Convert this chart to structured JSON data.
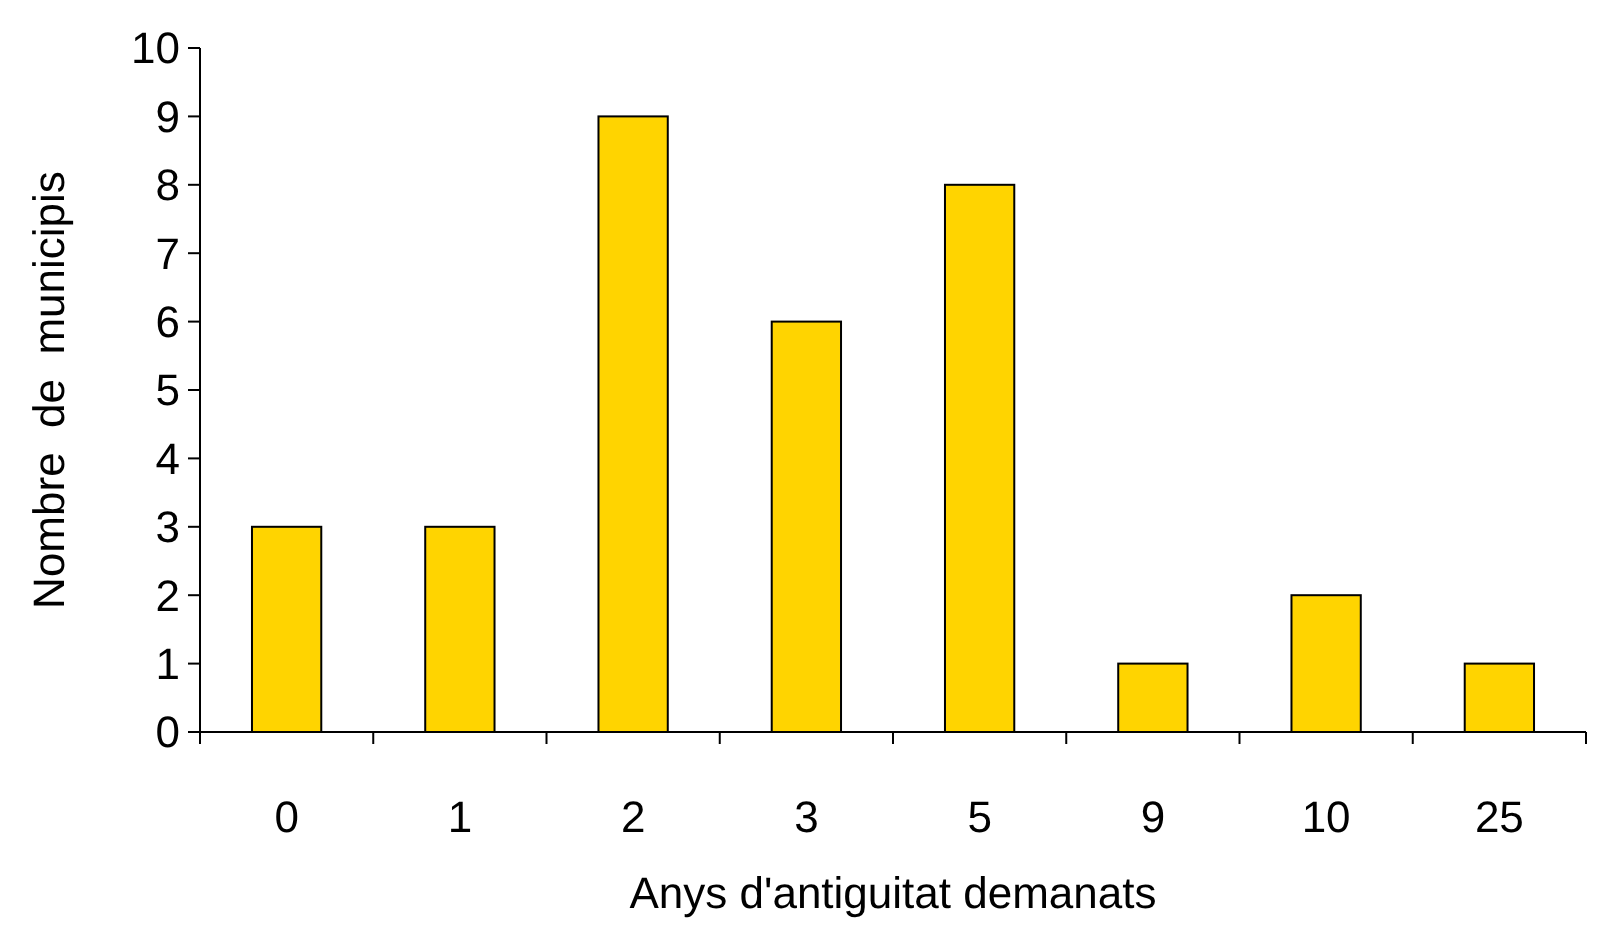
{
  "chart_data": {
    "type": "bar",
    "xlabel": "Anys d'antiguitat demanats",
    "ylabel": "Nombre  de  municipis",
    "categories": [
      "0",
      "1",
      "2",
      "3",
      "5",
      "9",
      "10",
      "25"
    ],
    "values": [
      3,
      3,
      9,
      6,
      8,
      1,
      2,
      1
    ],
    "color": "#ffd400",
    "ylim": [
      0,
      10
    ],
    "yticks": [
      0,
      1,
      2,
      3,
      4,
      5,
      6,
      7,
      8,
      9,
      10
    ],
    "grid": false
  }
}
